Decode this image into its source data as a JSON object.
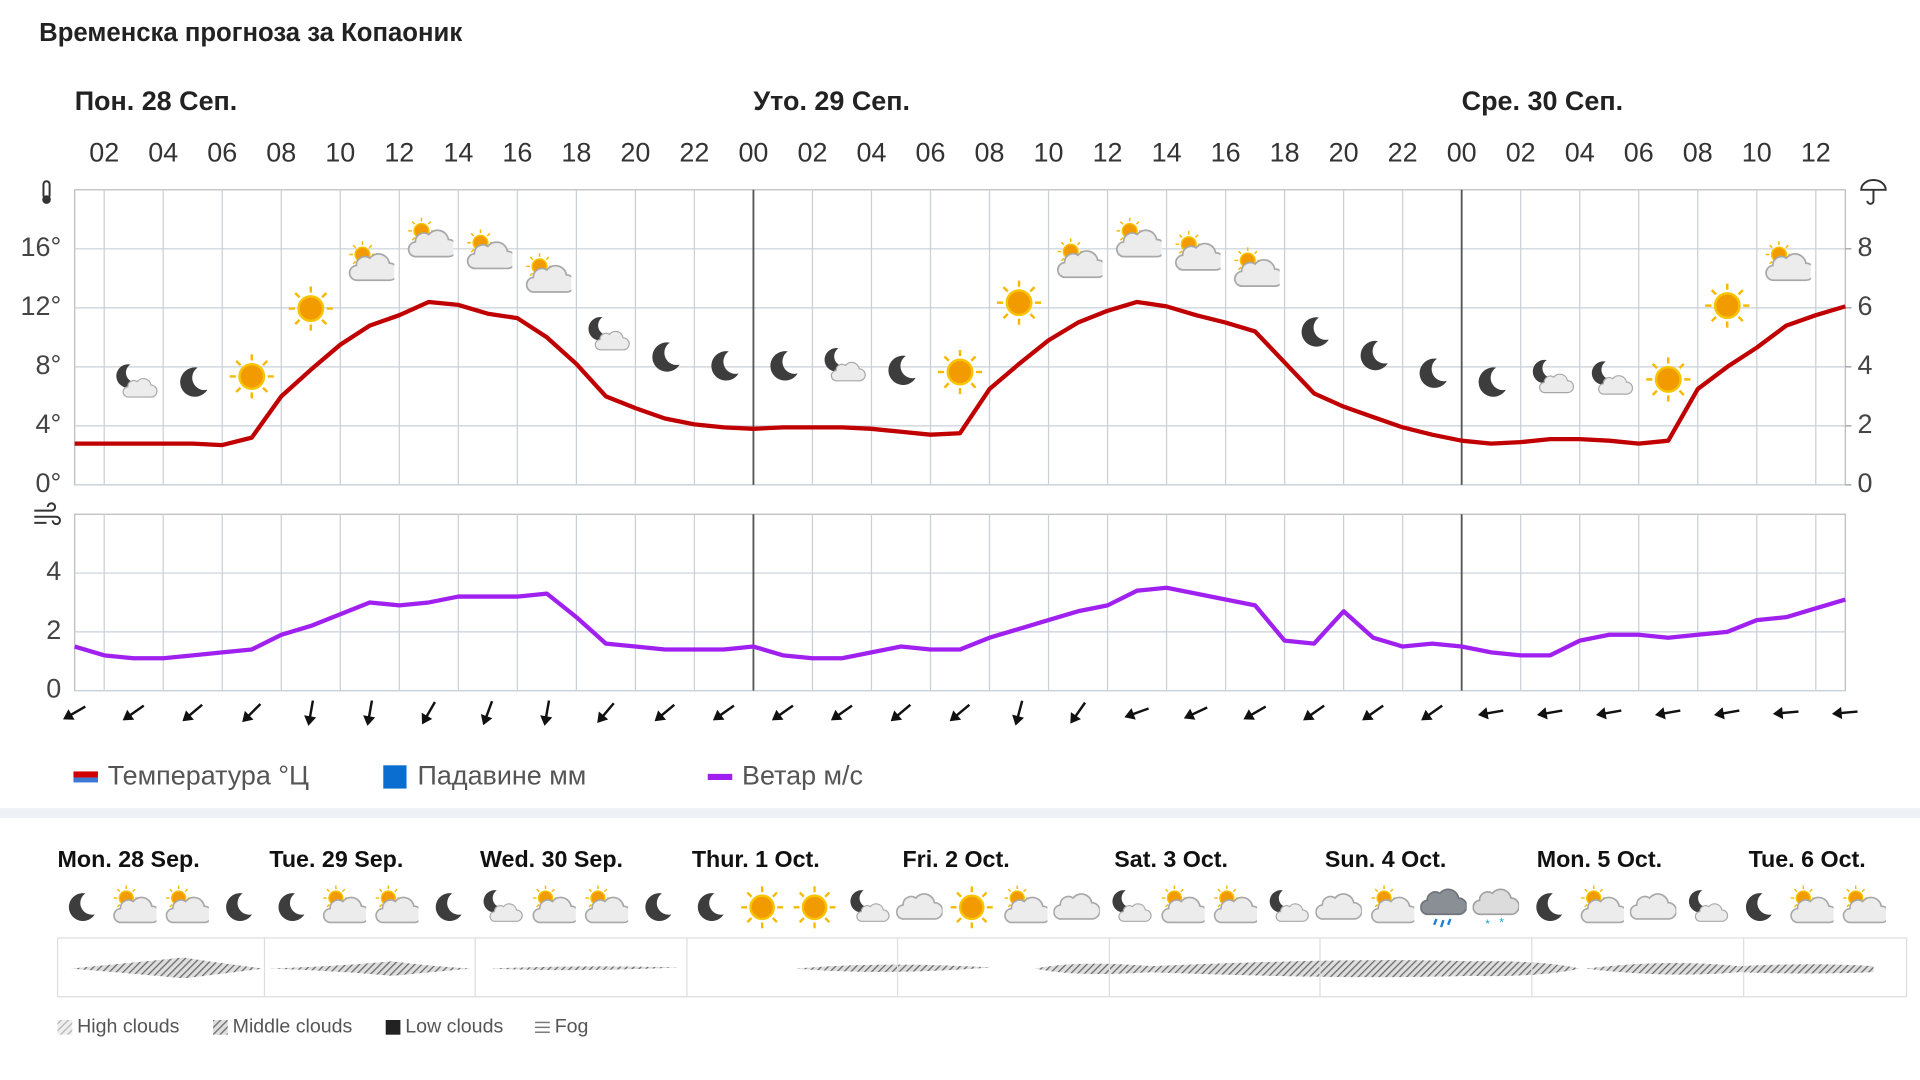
{
  "title": "Временска прогноза за Копаоник",
  "chart_data": [
    {
      "type": "line",
      "x": [
        1,
        2,
        3,
        4,
        5,
        6,
        7,
        8,
        9,
        10,
        11,
        12,
        13,
        14,
        15,
        16,
        17,
        18,
        19,
        20,
        21,
        22,
        23,
        24,
        25,
        26,
        27,
        28,
        29,
        30,
        31,
        32,
        33,
        34,
        35,
        36,
        37,
        38,
        39,
        40,
        41,
        42,
        43,
        44,
        45,
        46,
        47,
        48,
        49,
        50,
        51,
        52,
        53,
        54,
        55,
        56,
        57,
        58,
        59,
        60,
        61
      ],
      "xlim": [
        1,
        61
      ],
      "xticks": [
        {
          "value": 2,
          "label": "02"
        },
        {
          "value": 4,
          "label": "04"
        },
        {
          "value": 6,
          "label": "06"
        },
        {
          "value": 8,
          "label": "08"
        },
        {
          "value": 10,
          "label": "10"
        },
        {
          "value": 12,
          "label": "12"
        },
        {
          "value": 14,
          "label": "14"
        },
        {
          "value": 16,
          "label": "16"
        },
        {
          "value": 18,
          "label": "18"
        },
        {
          "value": 20,
          "label": "20"
        },
        {
          "value": 22,
          "label": "22"
        },
        {
          "value": 24,
          "label": "00"
        },
        {
          "value": 26,
          "label": "02"
        },
        {
          "value": 28,
          "label": "04"
        },
        {
          "value": 30,
          "label": "06"
        },
        {
          "value": 32,
          "label": "08"
        },
        {
          "value": 34,
          "label": "10"
        },
        {
          "value": 36,
          "label": "12"
        },
        {
          "value": 38,
          "label": "14"
        },
        {
          "value": 40,
          "label": "16"
        },
        {
          "value": 42,
          "label": "18"
        },
        {
          "value": 44,
          "label": "20"
        },
        {
          "value": 46,
          "label": "22"
        },
        {
          "value": 48,
          "label": "00"
        },
        {
          "value": 50,
          "label": "02"
        },
        {
          "value": 52,
          "label": "04"
        },
        {
          "value": 54,
          "label": "06"
        },
        {
          "value": 56,
          "label": "08"
        },
        {
          "value": 58,
          "label": "10"
        },
        {
          "value": 60,
          "label": "12"
        }
      ],
      "days": [
        {
          "label": "Пон. 28 Сеп.",
          "x": 0
        },
        {
          "label": "Уто. 29 Сеп.",
          "x": 24
        },
        {
          "label": "Сре. 30 Сеп.",
          "x": 48
        }
      ],
      "ylim": [
        0,
        20
      ],
      "yticks": [
        {
          "value": 0,
          "label": "0°"
        },
        {
          "value": 4,
          "label": "4°"
        },
        {
          "value": 8,
          "label": "8°"
        },
        {
          "value": 12,
          "label": "12°"
        },
        {
          "value": 16,
          "label": "16°"
        }
      ],
      "y2lim": [
        0,
        10
      ],
      "y2ticks": [
        0,
        2,
        4,
        6,
        8
      ],
      "grid": true,
      "series": [
        {
          "name": "Температура °Ц",
          "color": "#c00000",
          "values": [
            2.8,
            2.8,
            2.8,
            2.8,
            2.8,
            2.7,
            3.2,
            6.0,
            7.8,
            9.5,
            10.8,
            11.5,
            12.4,
            12.2,
            11.6,
            11.3,
            10.0,
            8.2,
            6.0,
            5.2,
            4.5,
            4.1,
            3.9,
            3.8,
            3.9,
            3.9,
            3.9,
            3.8,
            3.6,
            3.4,
            3.5,
            6.5,
            8.2,
            9.8,
            11.0,
            11.8,
            12.4,
            12.1,
            11.5,
            11.0,
            10.4,
            8.3,
            6.2,
            5.3,
            4.6,
            3.9,
            3.4,
            3.0,
            2.8,
            2.9,
            3.1,
            3.1,
            3.0,
            2.8,
            3.0,
            6.5,
            8.0,
            9.3,
            10.8,
            11.5,
            12.1
          ]
        },
        {
          "name": "Падавине мм",
          "color": "#0a6ed1",
          "axis": "y2",
          "values": [
            0,
            0,
            0,
            0,
            0,
            0,
            0,
            0,
            0,
            0,
            0,
            0,
            0,
            0,
            0,
            0,
            0,
            0,
            0,
            0,
            0,
            0,
            0,
            0,
            0,
            0,
            0,
            0,
            0,
            0,
            0,
            0,
            0,
            0,
            0,
            0,
            0,
            0,
            0,
            0,
            0,
            0,
            0,
            0,
            0,
            0,
            0,
            0,
            0,
            0,
            0,
            0,
            0,
            0,
            0,
            0,
            0,
            0,
            0,
            0,
            0
          ]
        }
      ]
    },
    {
      "type": "line",
      "x": [
        1,
        2,
        3,
        4,
        5,
        6,
        7,
        8,
        9,
        10,
        11,
        12,
        13,
        14,
        15,
        16,
        17,
        18,
        19,
        20,
        21,
        22,
        23,
        24,
        25,
        26,
        27,
        28,
        29,
        30,
        31,
        32,
        33,
        34,
        35,
        36,
        37,
        38,
        39,
        40,
        41,
        42,
        43,
        44,
        45,
        46,
        47,
        48,
        49,
        50,
        51,
        52,
        53,
        54,
        55,
        56,
        57,
        58,
        59,
        60,
        61
      ],
      "xlim": [
        1,
        61
      ],
      "ylim": [
        0,
        6
      ],
      "yticks": [
        0,
        2,
        4
      ],
      "grid": true,
      "series": [
        {
          "name": "Ветар м/с",
          "color": "#a020f0",
          "values": [
            1.5,
            1.2,
            1.1,
            1.1,
            1.2,
            1.3,
            1.4,
            1.9,
            2.2,
            2.6,
            3.0,
            2.9,
            3.0,
            3.2,
            3.2,
            3.2,
            3.3,
            2.5,
            1.6,
            1.5,
            1.4,
            1.4,
            1.4,
            1.5,
            1.2,
            1.1,
            1.1,
            1.3,
            1.5,
            1.4,
            1.4,
            1.8,
            2.1,
            2.4,
            2.7,
            2.9,
            3.4,
            3.5,
            3.3,
            3.1,
            2.9,
            1.7,
            1.6,
            2.7,
            1.8,
            1.5,
            1.6,
            1.5,
            1.3,
            1.2,
            1.2,
            1.7,
            1.9,
            1.9,
            1.8,
            1.9,
            2.0,
            2.4,
            2.5,
            2.8,
            3.1
          ]
        }
      ],
      "wind_direction_x": [
        1,
        3,
        5,
        7,
        9,
        11,
        13,
        15,
        17,
        19,
        21,
        23,
        25,
        27,
        29,
        31,
        33,
        35,
        37,
        39,
        41,
        43,
        45,
        47,
        49,
        51,
        53,
        55,
        57,
        59,
        61
      ],
      "wind_direction": [
        240,
        235,
        230,
        225,
        190,
        190,
        210,
        200,
        190,
        220,
        230,
        235,
        235,
        235,
        230,
        230,
        195,
        215,
        250,
        245,
        240,
        235,
        235,
        235,
        260,
        260,
        260,
        260,
        260,
        265,
        265
      ]
    }
  ],
  "week": {
    "days": [
      "Mon. 28 Sep.",
      "Tue. 29 Sep.",
      "Wed. 30 Sep.",
      "Thur. 1 Oct.",
      "Fri. 2 Oct.",
      "Sat. 3 Oct.",
      "Sun. 4 Oct.",
      "Mon. 5 Oct.",
      "Tue. 6 Oct."
    ],
    "legend": [
      "High clouds",
      "Middle clouds",
      "Low clouds",
      "Fog"
    ]
  }
}
